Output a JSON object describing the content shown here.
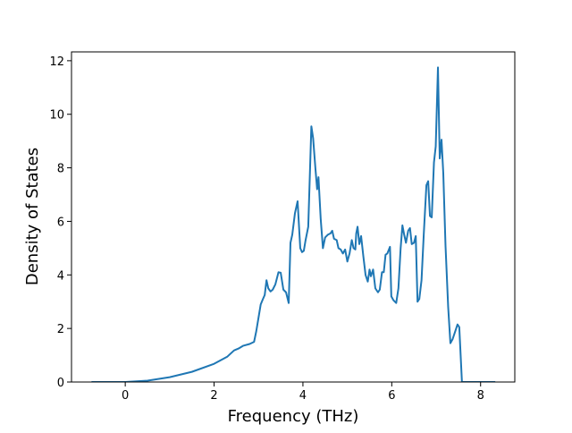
{
  "chart_data": {
    "type": "line",
    "x_label": "Frequency (THz)",
    "y_label": "Density of States",
    "xlim": [
      -1.21,
      8.77
    ],
    "ylim": [
      0,
      12.33
    ],
    "xticks": [
      0,
      2,
      4,
      6,
      8
    ],
    "yticks": [
      0,
      2,
      4,
      6,
      8,
      10,
      12
    ],
    "grid": false,
    "x": [
      -0.76,
      0,
      0.5,
      1,
      1.5,
      2,
      2.3,
      2.45,
      2.55,
      2.65,
      2.8,
      2.9,
      2.95,
      3.0,
      3.05,
      3.1,
      3.14,
      3.18,
      3.22,
      3.27,
      3.32,
      3.38,
      3.45,
      3.5,
      3.56,
      3.62,
      3.68,
      3.72,
      3.76,
      3.82,
      3.88,
      3.94,
      3.98,
      4.02,
      4.06,
      4.12,
      4.19,
      4.23,
      4.28,
      4.32,
      4.35,
      4.4,
      4.45,
      4.5,
      4.56,
      4.62,
      4.66,
      4.7,
      4.76,
      4.8,
      4.85,
      4.9,
      4.95,
      5.0,
      5.05,
      5.1,
      5.14,
      5.18,
      5.2,
      5.23,
      5.27,
      5.31,
      5.36,
      5.41,
      5.46,
      5.5,
      5.53,
      5.58,
      5.63,
      5.69,
      5.73,
      5.78,
      5.82,
      5.86,
      5.9,
      5.96,
      5.99,
      6.04,
      6.1,
      6.15,
      6.2,
      6.24,
      6.28,
      6.32,
      6.37,
      6.41,
      6.45,
      6.5,
      6.54,
      6.58,
      6.62,
      6.67,
      6.72,
      6.78,
      6.82,
      6.86,
      6.9,
      6.95,
      6.99,
      7.04,
      7.08,
      7.12,
      7.16,
      7.21,
      7.27,
      7.32,
      7.37,
      7.42,
      7.48,
      7.52,
      7.58,
      8.33
    ],
    "series": [
      {
        "color": "#1f77b4",
        "values": [
          0,
          0,
          0.05,
          0.18,
          0.38,
          0.68,
          0.95,
          1.18,
          1.25,
          1.35,
          1.42,
          1.5,
          1.9,
          2.4,
          2.9,
          3.1,
          3.25,
          3.8,
          3.5,
          3.38,
          3.45,
          3.65,
          4.1,
          4.08,
          3.45,
          3.35,
          2.95,
          5.2,
          5.5,
          6.3,
          6.75,
          5.0,
          4.85,
          4.9,
          5.3,
          5.8,
          9.55,
          9.1,
          8.0,
          7.2,
          7.65,
          6.1,
          5.0,
          5.4,
          5.5,
          5.55,
          5.65,
          5.35,
          5.3,
          5.0,
          4.95,
          4.8,
          4.95,
          4.5,
          4.8,
          5.3,
          5.0,
          4.95,
          5.55,
          5.8,
          5.15,
          5.45,
          4.7,
          4.0,
          3.75,
          4.2,
          3.95,
          4.2,
          3.5,
          3.35,
          3.45,
          4.1,
          4.1,
          4.75,
          4.8,
          5.05,
          3.2,
          3.05,
          2.95,
          3.5,
          5.0,
          5.85,
          5.5,
          5.2,
          5.65,
          5.75,
          5.15,
          5.2,
          5.45,
          3.0,
          3.1,
          3.8,
          5.5,
          7.35,
          7.5,
          6.2,
          6.15,
          8.2,
          8.8,
          11.75,
          8.35,
          9.05,
          7.8,
          5.1,
          2.8,
          1.45,
          1.6,
          1.85,
          2.15,
          2.05,
          0,
          0
        ]
      }
    ]
  }
}
